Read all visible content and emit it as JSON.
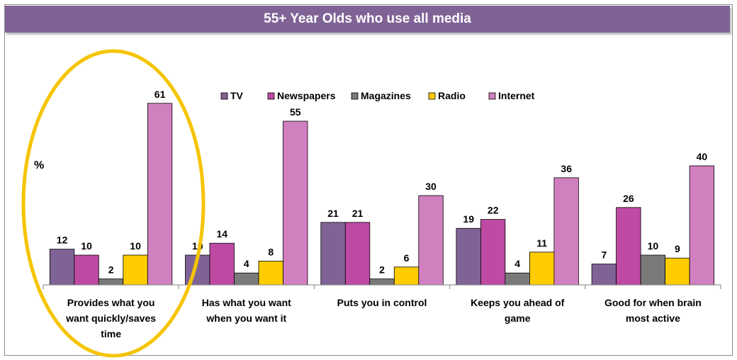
{
  "chart_data": {
    "type": "bar",
    "title": "55+ Year Olds who use all media",
    "ylabel": "%",
    "ylim": [
      0,
      70
    ],
    "grid": false,
    "legend_placement": "top",
    "categories": [
      "Provides what you want quickly/saves time",
      "Has what you want when you want it",
      "Puts you in control",
      "Keeps you ahead of game",
      "Good for when brain most active"
    ],
    "category_lines": [
      [
        "Provides what you",
        "want quickly/saves",
        "time"
      ],
      [
        "Has what you want",
        "when you want it"
      ],
      [
        "Puts you in control"
      ],
      [
        "Keeps you ahead of",
        "game"
      ],
      [
        "Good for when brain",
        "most active"
      ]
    ],
    "series": [
      {
        "name": "TV",
        "color": "#7f6396",
        "values": [
          12,
          10,
          21,
          19,
          7
        ]
      },
      {
        "name": "Newspapers",
        "color": "#be4aa3",
        "values": [
          10,
          14,
          21,
          22,
          26
        ]
      },
      {
        "name": "Magazines",
        "color": "#7a7a7a",
        "values": [
          2,
          4,
          2,
          4,
          10
        ]
      },
      {
        "name": "Radio",
        "color": "#ffcc00",
        "values": [
          10,
          8,
          6,
          11,
          9
        ]
      },
      {
        "name": "Internet",
        "color": "#d07fbf",
        "values": [
          61,
          55,
          30,
          36,
          40
        ]
      }
    ],
    "annotations": [
      {
        "type": "ellipse",
        "target_category": 0,
        "color": "#f5c400"
      }
    ]
  }
}
